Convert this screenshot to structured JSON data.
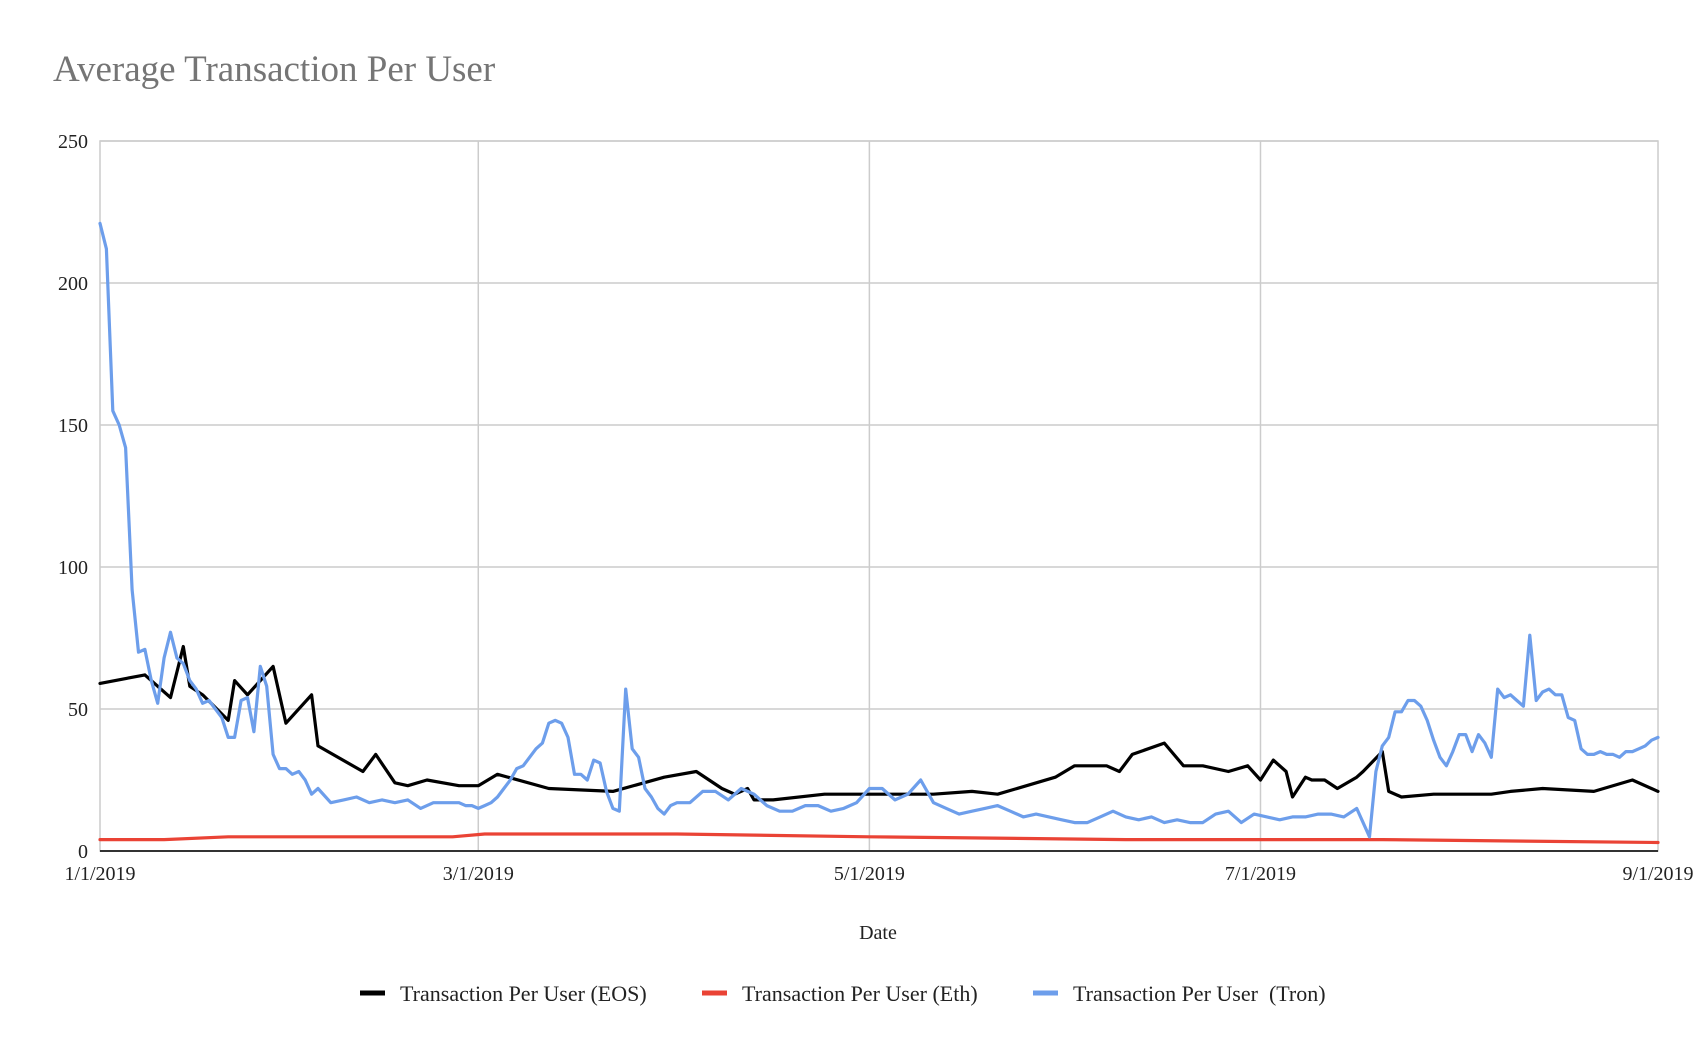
{
  "chart_data": {
    "type": "line",
    "title": "Average Transaction Per User",
    "xlabel": "Date",
    "ylabel": "",
    "ylim": [
      0,
      250
    ],
    "yticks": [
      0,
      50,
      100,
      150,
      200,
      250
    ],
    "xtick_labels": [
      "1/1/2019",
      "3/1/2019",
      "5/1/2019",
      "7/1/2019",
      "9/1/2019"
    ],
    "x_day_range": [
      0,
      243
    ],
    "xtick_days": [
      0,
      59,
      120,
      181,
      243
    ],
    "grid": true,
    "legend_position": "bottom",
    "series": [
      {
        "name": "Transaction Per User (EOS)",
        "color": "#000000",
        "x": [
          0,
          7,
          11,
          13,
          14,
          16,
          20,
          21,
          23,
          27,
          29,
          33,
          34,
          41,
          43,
          46,
          48,
          51,
          56,
          59,
          62,
          70,
          80,
          88,
          93,
          97,
          99,
          101,
          102,
          105,
          113,
          120,
          125,
          130,
          136,
          140,
          149,
          152,
          157,
          159,
          161,
          166,
          169,
          172,
          176,
          179,
          181,
          183,
          185,
          186,
          188,
          189,
          191,
          193,
          196,
          197,
          200,
          201,
          203,
          208,
          211,
          217,
          220,
          225,
          233,
          239,
          243
        ],
        "values": [
          59,
          62,
          54,
          72,
          58,
          55,
          46,
          60,
          55,
          65,
          45,
          55,
          37,
          28,
          34,
          24,
          23,
          25,
          23,
          23,
          27,
          22,
          21,
          26,
          28,
          22,
          20,
          22,
          18,
          18,
          20,
          20,
          20,
          20,
          21,
          20,
          26,
          30,
          30,
          28,
          34,
          38,
          30,
          30,
          28,
          30,
          25,
          32,
          28,
          19,
          26,
          25,
          25,
          22,
          26,
          28,
          35,
          21,
          19,
          20,
          20,
          20,
          21,
          22,
          21,
          25,
          21
        ]
      },
      {
        "name": "Transaction Per User (Eth)",
        "color": "#ea4335",
        "x": [
          0,
          10,
          20,
          39,
          55,
          60,
          73,
          90,
          120,
          160,
          200,
          243
        ],
        "values": [
          4,
          4,
          5,
          5,
          5,
          6,
          6,
          6,
          5,
          4,
          4,
          3
        ]
      },
      {
        "name": "Transaction Per User  (Tron)",
        "color": "#6d9eeb",
        "x": [
          0,
          1,
          2,
          3,
          4,
          5,
          6,
          7,
          8,
          9,
          10,
          11,
          12,
          13,
          14,
          15,
          16,
          17,
          18,
          19,
          20,
          21,
          22,
          23,
          24,
          25,
          26,
          27,
          28,
          29,
          30,
          31,
          32,
          33,
          34,
          36,
          38,
          40,
          42,
          44,
          46,
          48,
          50,
          52,
          54,
          56,
          57,
          58,
          59,
          60,
          61,
          62,
          63,
          64,
          65,
          66,
          67,
          68,
          69,
          70,
          71,
          72,
          73,
          74,
          75,
          76,
          77,
          78,
          79,
          80,
          81,
          82,
          83,
          84,
          85,
          86,
          87,
          88,
          89,
          90,
          92,
          94,
          96,
          98,
          100,
          102,
          104,
          106,
          108,
          110,
          112,
          114,
          116,
          118,
          120,
          122,
          124,
          126,
          128,
          130,
          132,
          134,
          136,
          138,
          140,
          142,
          144,
          146,
          148,
          150,
          152,
          154,
          156,
          158,
          160,
          162,
          164,
          166,
          168,
          170,
          172,
          174,
          176,
          178,
          180,
          182,
          184,
          186,
          188,
          190,
          192,
          194,
          196,
          198,
          199,
          200,
          201,
          202,
          203,
          204,
          205,
          206,
          207,
          208,
          209,
          210,
          211,
          212,
          213,
          214,
          215,
          216,
          217,
          218,
          219,
          220,
          221,
          222,
          223,
          224,
          225,
          226,
          227,
          228,
          229,
          230,
          231,
          232,
          233,
          234,
          235,
          236,
          237,
          238,
          239,
          240,
          241,
          242,
          243
        ],
        "values": [
          221,
          212,
          155,
          150,
          142,
          92,
          70,
          71,
          60,
          52,
          68,
          77,
          68,
          66,
          60,
          57,
          52,
          53,
          50,
          47,
          40,
          40,
          53,
          54,
          42,
          65,
          58,
          34,
          29,
          29,
          27,
          28,
          25,
          20,
          22,
          17,
          18,
          19,
          17,
          18,
          17,
          18,
          15,
          17,
          17,
          17,
          16,
          16,
          15,
          16,
          17,
          19,
          22,
          25,
          29,
          30,
          33,
          36,
          38,
          45,
          46,
          45,
          40,
          27,
          27,
          25,
          32,
          31,
          21,
          15,
          14,
          57,
          36,
          33,
          22,
          19,
          15,
          13,
          16,
          17,
          17,
          21,
          21,
          18,
          22,
          20,
          16,
          14,
          14,
          16,
          16,
          14,
          15,
          17,
          22,
          22,
          18,
          20,
          25,
          17,
          15,
          13,
          14,
          15,
          16,
          14,
          12,
          13,
          12,
          11,
          10,
          10,
          12,
          14,
          12,
          11,
          12,
          10,
          11,
          10,
          10,
          13,
          14,
          10,
          13,
          12,
          11,
          12,
          12,
          13,
          13,
          12,
          15,
          5,
          28,
          37,
          40,
          49,
          49,
          53,
          53,
          51,
          46,
          39,
          33,
          30,
          35,
          41,
          41,
          35,
          41,
          38,
          33,
          57,
          54,
          55,
          53,
          51,
          76,
          53,
          56,
          57,
          55,
          55,
          47,
          46,
          36,
          34,
          34,
          35,
          34,
          34,
          33,
          35,
          35,
          36,
          37,
          39,
          40
        ]
      }
    ]
  }
}
